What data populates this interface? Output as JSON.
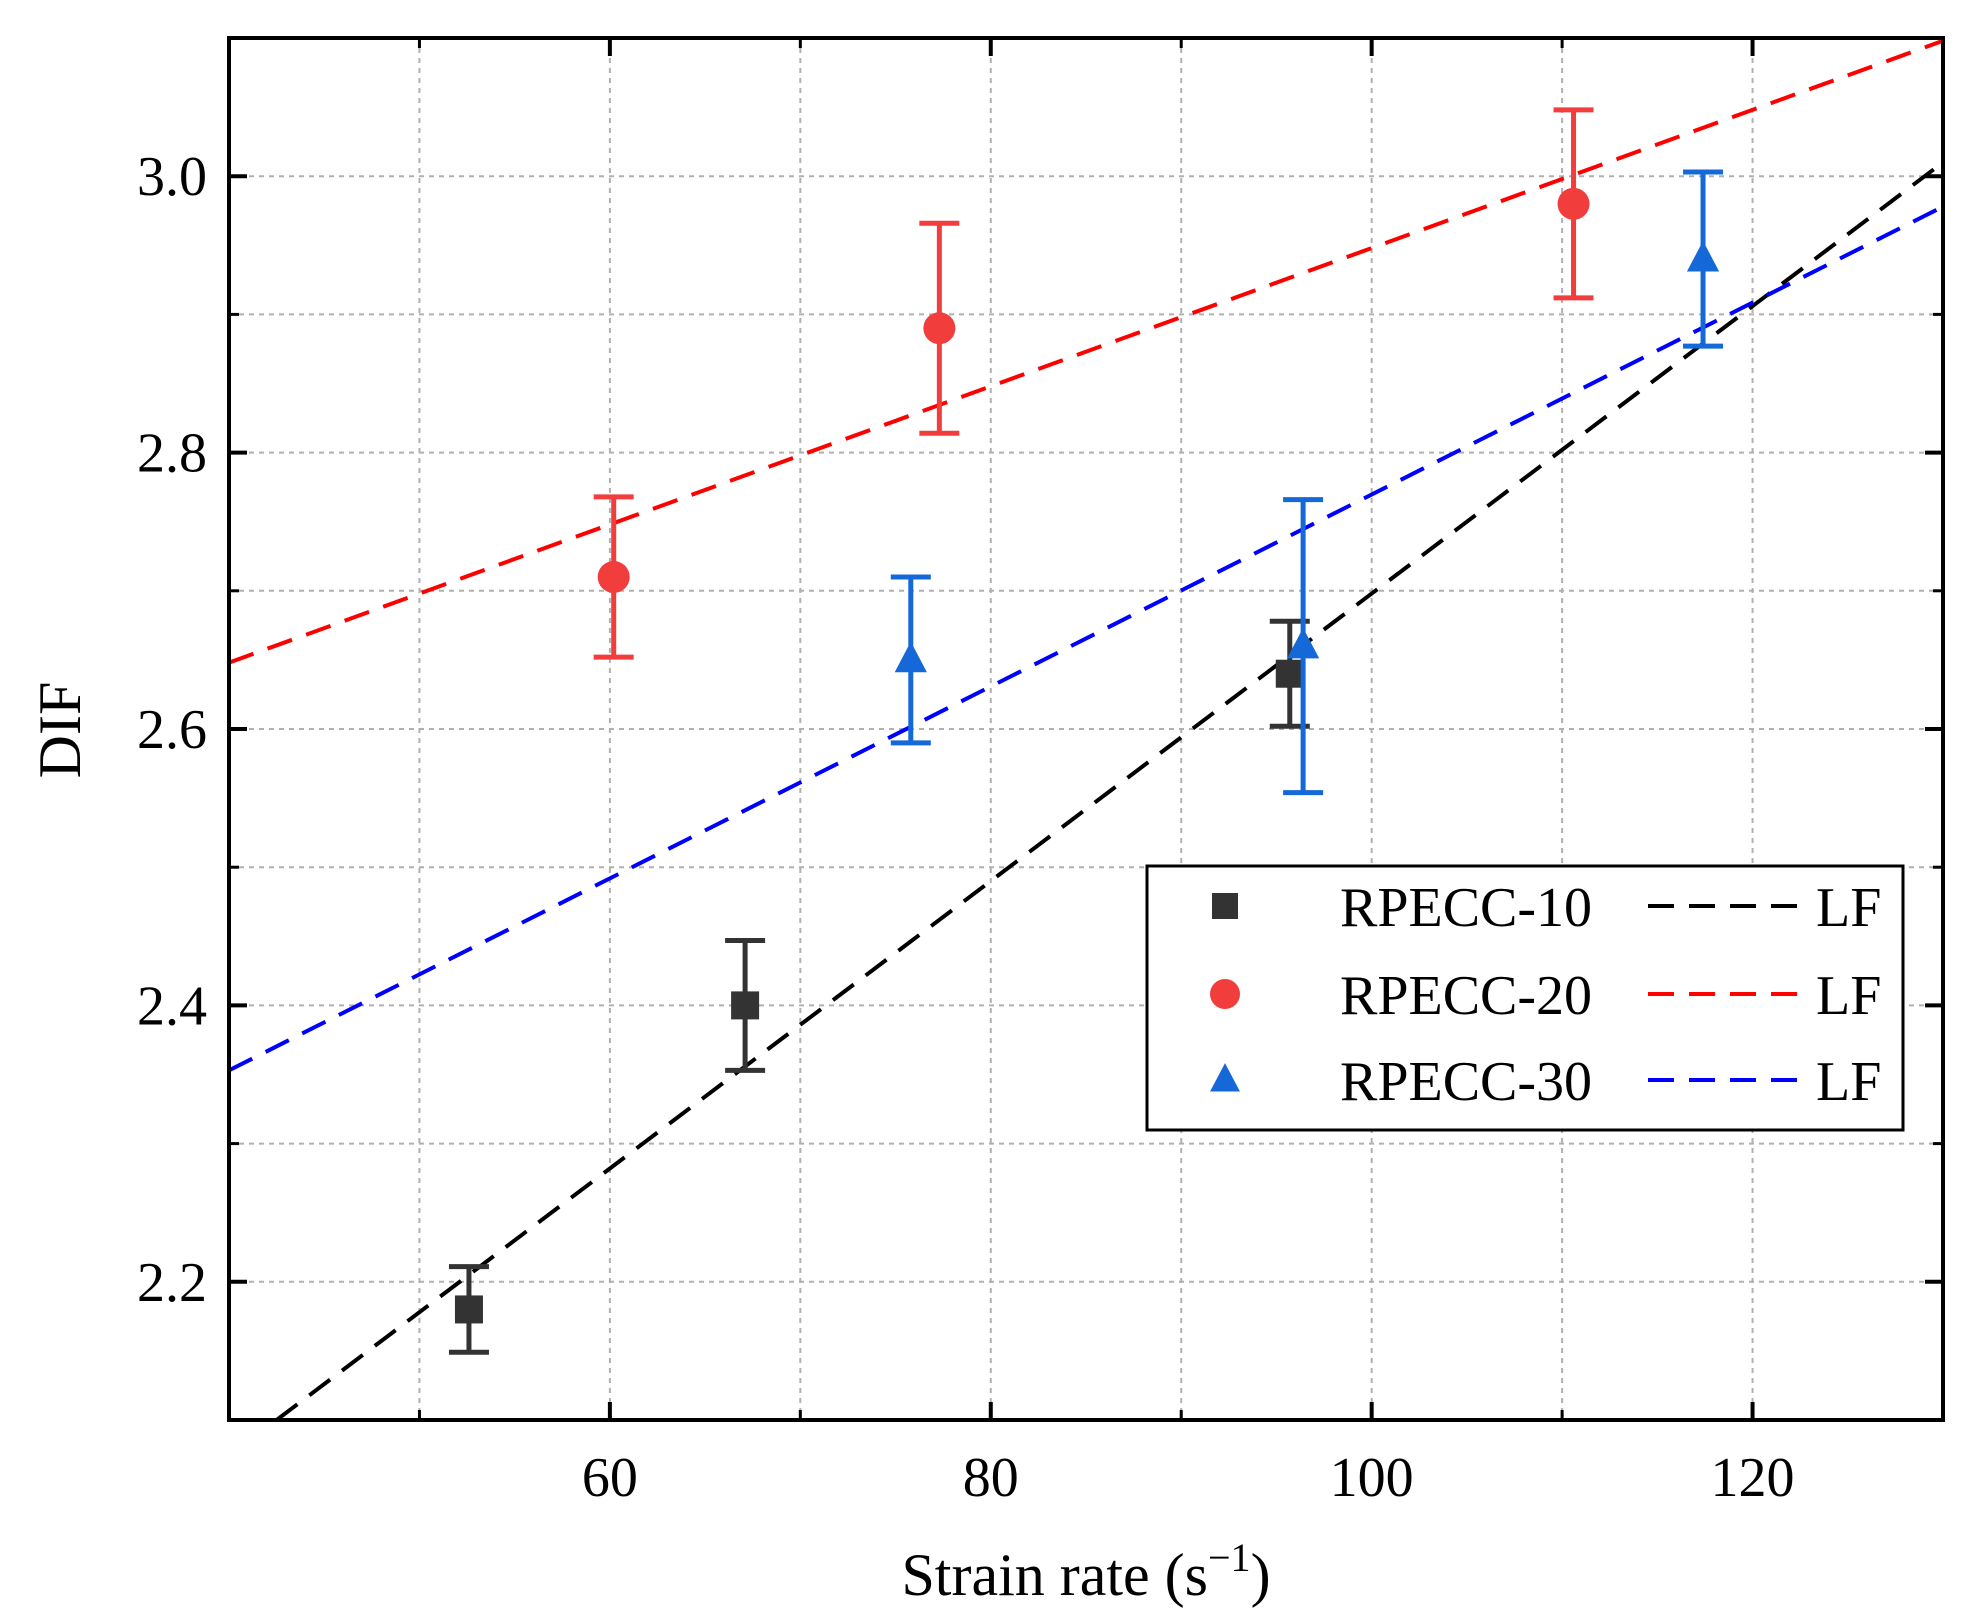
{
  "chart_data": {
    "type": "scatter",
    "title": "",
    "xlabel": "Strain rate (s",
    "xlabel_sup": "−1",
    "xlabel_close": ")",
    "ylabel": "DIF",
    "xlim": [
      40,
      130
    ],
    "ylim": [
      2.1,
      3.1
    ],
    "x_ticks": [
      60,
      80,
      100,
      120
    ],
    "x_tick_labels": [
      "60",
      "80",
      "100",
      "120"
    ],
    "x_minor_ticks": [
      50,
      70,
      90,
      110
    ],
    "y_ticks": [
      2.2,
      2.4,
      2.6,
      2.8,
      3.0
    ],
    "y_tick_labels": [
      "2.2",
      "2.4",
      "2.6",
      "2.8",
      "3.0"
    ],
    "y_minor_ticks": [
      2.3,
      2.5,
      2.7,
      2.9
    ],
    "grid": true,
    "legend_position": "center-right",
    "series": [
      {
        "name": "RPECC-10",
        "fit_label": "LF",
        "color": "#333333",
        "marker": "square",
        "x": [
          52.6,
          67.1,
          95.7
        ],
        "y": [
          2.18,
          2.4,
          2.64
        ],
        "err": [
          0.031,
          0.047,
          0.038
        ],
        "fit": {
          "x0": 42.5,
          "y0": 2.1,
          "x1": 130,
          "y1": 3.01
        }
      },
      {
        "name": "RPECC-20",
        "fit_label": "LF",
        "color": "#f23d3d",
        "marker": "circle",
        "x": [
          60.2,
          77.3,
          110.6
        ],
        "y": [
          2.71,
          2.89,
          2.98
        ],
        "err": [
          0.058,
          0.076,
          0.068
        ],
        "fit": {
          "x0": 40,
          "y0": 2.648,
          "x1": 130,
          "y1": 3.098
        }
      },
      {
        "name": "RPECC-30",
        "fit_label": "LF",
        "color": "#1468d8",
        "marker": "triangle",
        "x": [
          75.8,
          96.4,
          117.4
        ],
        "y": [
          2.65,
          2.66,
          2.94
        ],
        "err": [
          0.06,
          0.106,
          0.063
        ],
        "fit": {
          "x0": 40,
          "y0": 2.353,
          "x1": 130,
          "y1": 2.978
        }
      }
    ]
  },
  "colors": {
    "fit_black": "#000000",
    "fit_red": "#ff0000",
    "fit_blue": "#0000ff",
    "grid": "#b0b0b0",
    "axis": "#000000"
  }
}
